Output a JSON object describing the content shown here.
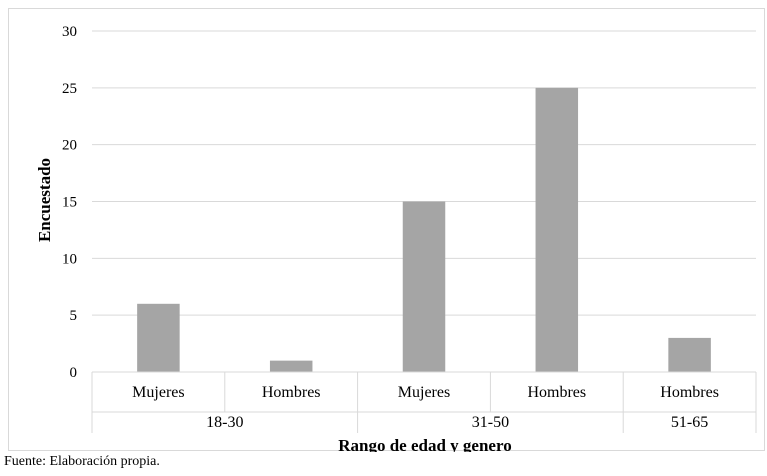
{
  "chart_data": {
    "type": "bar",
    "ylabel": "Encuestado",
    "xlabel": "Rango de edad y genero",
    "ylim": [
      0,
      30
    ],
    "yticks": [
      0,
      5,
      10,
      15,
      20,
      25,
      30
    ],
    "grid": true,
    "bar_color": "#a5a5a5",
    "groups": [
      {
        "label": "18-30",
        "categories": [
          "Mujeres",
          "Hombres"
        ],
        "values": [
          6,
          1
        ]
      },
      {
        "label": "31-50",
        "categories": [
          "Mujeres",
          "Hombres"
        ],
        "values": [
          15,
          25
        ]
      },
      {
        "label": "51-65",
        "categories": [
          "Hombres"
        ],
        "values": [
          3
        ]
      }
    ]
  },
  "source_note": "Fuente: Elaboración propia."
}
